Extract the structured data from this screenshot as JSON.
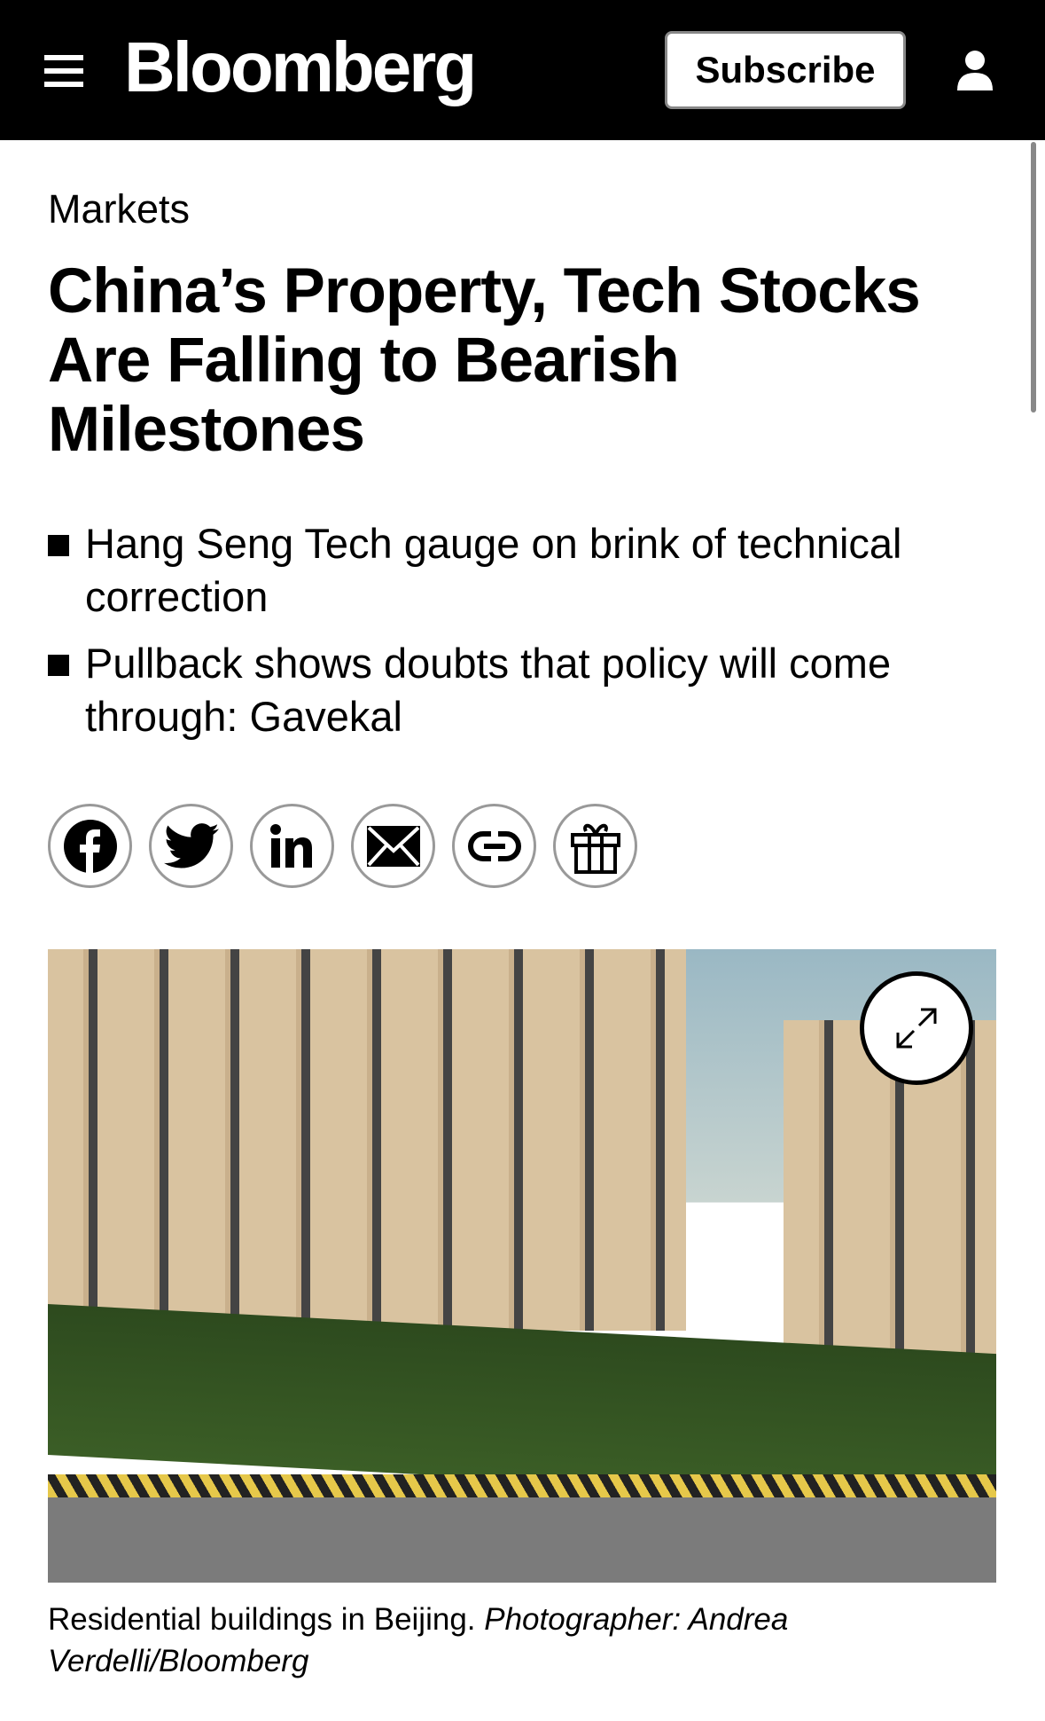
{
  "header": {
    "logo": "Bloomberg",
    "subscribe_label": "Subscribe",
    "icons": [
      "menu-icon",
      "user-icon"
    ]
  },
  "article": {
    "section": "Markets",
    "title": "China’s Property, Tech Stocks Are Falling to Bearish Milestones",
    "bullets": [
      "Hang Seng Tech gauge on brink of technical correction",
      "Pullback shows doubts that policy will come through: Gavekal"
    ],
    "share_icons": [
      "facebook-icon",
      "twitter-icon",
      "linkedin-icon",
      "email-icon",
      "link-icon",
      "gift-icon"
    ],
    "image": {
      "caption": "Residential buildings in Beijing.",
      "credit": "Photographer: Andrea Verdelli/Bloomberg"
    }
  }
}
